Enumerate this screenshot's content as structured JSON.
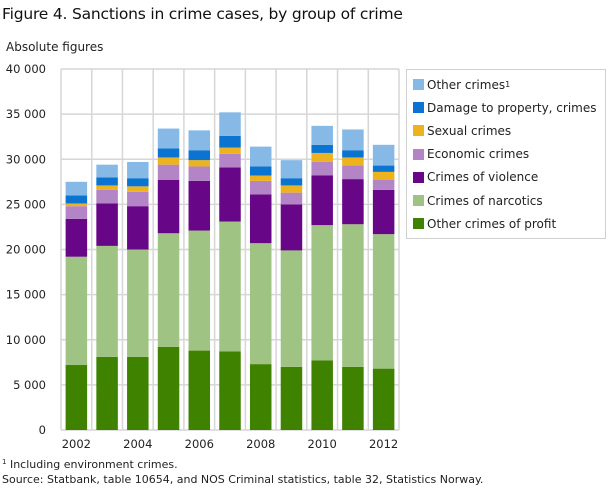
{
  "chart_data": {
    "type": "bar",
    "stacked": true,
    "title": "Figure 4. Sanctions in crime cases, by group of crime",
    "ylabel": "Absolute figures",
    "xlabel": "",
    "ylim": [
      0,
      40000
    ],
    "yticks": [
      0,
      5000,
      10000,
      15000,
      20000,
      25000,
      30000,
      35000,
      40000
    ],
    "ytick_labels": [
      "0",
      "5 000",
      "10 000",
      "15 000",
      "20 000",
      "25 000",
      "30 000",
      "35 000",
      "40 000"
    ],
    "categories": [
      "2002",
      "2003",
      "2004",
      "2005",
      "2006",
      "2007",
      "2008",
      "2009",
      "2010",
      "2011",
      "2012"
    ],
    "xtick_labels": [
      "2002",
      "",
      "2004",
      "",
      "2006",
      "",
      "2008",
      "",
      "2010",
      "",
      "2012"
    ],
    "grid": true,
    "legend_position": "right",
    "series": [
      {
        "name": "Other crimes of profit",
        "color": "#3f8200",
        "values": [
          7200,
          8100,
          8100,
          9200,
          8800,
          8700,
          7300,
          7000,
          7700,
          7000,
          6800
        ]
      },
      {
        "name": "Crimes of narcotics",
        "color": "#9fc383",
        "values": [
          12000,
          12300,
          11900,
          12600,
          13300,
          14400,
          13400,
          12900,
          15000,
          15800,
          14900
        ]
      },
      {
        "name": "Crimes of violence",
        "color": "#670686",
        "values": [
          4200,
          4700,
          4800,
          5900,
          5500,
          6000,
          5400,
          5100,
          5500,
          5000,
          4900
        ]
      },
      {
        "name": "Economic crimes",
        "color": "#b384c6",
        "values": [
          1400,
          1500,
          1600,
          1700,
          1600,
          1500,
          1500,
          1300,
          1500,
          1500,
          1100
        ]
      },
      {
        "name": "Sexual crimes",
        "color": "#edb31f",
        "values": [
          300,
          500,
          600,
          800,
          700,
          700,
          600,
          800,
          1000,
          900,
          900
        ]
      },
      {
        "name": "Damage to property, crimes",
        "color": "#0a74d0",
        "values": [
          900,
          900,
          900,
          1000,
          1100,
          1300,
          1000,
          800,
          900,
          800,
          700
        ]
      },
      {
        "name": "Other crimes",
        "name_superscript": "1",
        "color": "#86b9e6",
        "values": [
          1500,
          1400,
          1800,
          2200,
          2200,
          2600,
          2200,
          2000,
          2100,
          2300,
          2300
        ]
      }
    ],
    "legend_order": [
      6,
      5,
      4,
      3,
      2,
      1,
      0
    ],
    "footnote_marker": "1",
    "footnote": "Including environment crimes.",
    "source": "Source: Statbank, table 10654, and NOS Criminal statistics, table 32, Statistics Norway."
  }
}
